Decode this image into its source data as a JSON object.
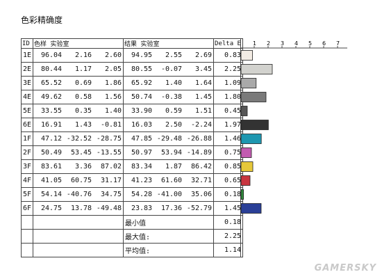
{
  "title": "色彩精确度",
  "headers": {
    "id": "ID",
    "target": "色样 实验室",
    "result": "结果 实验室",
    "delta": "Delta E"
  },
  "chart_data": {
    "type": "bar",
    "categories": [
      "1E",
      "2E",
      "3E",
      "4E",
      "5E",
      "6E",
      "1F",
      "2F",
      "3F",
      "4F",
      "5F",
      "6F"
    ],
    "values": [
      0.83,
      2.25,
      1.09,
      1.8,
      0.45,
      1.97,
      1.46,
      0.75,
      0.85,
      0.65,
      0.18,
      1.45
    ],
    "colors": [
      "#f3ece4",
      "#d2d2ce",
      "#a9a9a9",
      "#7a7a7a",
      "#565656",
      "#333333",
      "#1e97b0",
      "#c25bb0",
      "#e6c83a",
      "#c8353f",
      "#2f8a3c",
      "#2a3f97"
    ],
    "xlim": [
      0,
      7
    ],
    "x_ticks": [
      "1",
      "2",
      "3",
      "4",
      "5",
      "6",
      "7"
    ]
  },
  "rows": [
    {
      "id": "1E",
      "target": [
        "96.04",
        "2.16",
        "2.60"
      ],
      "result": [
        "94.95",
        "2.55",
        "2.69"
      ],
      "delta": "0.83"
    },
    {
      "id": "2E",
      "target": [
        "80.44",
        "1.17",
        "2.05"
      ],
      "result": [
        "80.55",
        "-0.07",
        "3.45"
      ],
      "delta": "2.25"
    },
    {
      "id": "3E",
      "target": [
        "65.52",
        "0.69",
        "1.86"
      ],
      "result": [
        "65.92",
        "1.40",
        "1.64"
      ],
      "delta": "1.09"
    },
    {
      "id": "4E",
      "target": [
        "49.62",
        "0.58",
        "1.56"
      ],
      "result": [
        "50.74",
        "-0.38",
        "1.45"
      ],
      "delta": "1.80"
    },
    {
      "id": "5E",
      "target": [
        "33.55",
        "0.35",
        "1.40"
      ],
      "result": [
        "33.90",
        "0.59",
        "1.51"
      ],
      "delta": "0.45"
    },
    {
      "id": "6E",
      "target": [
        "16.91",
        "1.43",
        "-0.81"
      ],
      "result": [
        "16.03",
        "2.50",
        "-2.24"
      ],
      "delta": "1.97"
    },
    {
      "id": "1F",
      "target": [
        "47.12",
        "-32.52",
        "-28.75"
      ],
      "result": [
        "47.85",
        "-29.48",
        "-26.88"
      ],
      "delta": "1.46"
    },
    {
      "id": "2F",
      "target": [
        "50.49",
        "53.45",
        "-13.55"
      ],
      "result": [
        "50.97",
        "53.94",
        "-14.89"
      ],
      "delta": "0.75"
    },
    {
      "id": "3F",
      "target": [
        "83.61",
        "3.36",
        "87.02"
      ],
      "result": [
        "83.34",
        "1.87",
        "86.42"
      ],
      "delta": "0.85"
    },
    {
      "id": "4F",
      "target": [
        "41.05",
        "60.75",
        "31.17"
      ],
      "result": [
        "41.23",
        "61.60",
        "32.71"
      ],
      "delta": "0.65"
    },
    {
      "id": "5F",
      "target": [
        "54.14",
        "-40.76",
        "34.75"
      ],
      "result": [
        "54.28",
        "-41.00",
        "35.06"
      ],
      "delta": "0.18"
    },
    {
      "id": "6F",
      "target": [
        "24.75",
        "13.78",
        "-49.48"
      ],
      "result": [
        "23.83",
        "17.36",
        "-52.79"
      ],
      "delta": "1.45"
    }
  ],
  "summary": [
    {
      "label": "最小值",
      "value": "0.18"
    },
    {
      "label": "最大值:",
      "value": "2.25"
    },
    {
      "label": "平均值:",
      "value": "1.14"
    }
  ],
  "watermark": "GAMERSKY"
}
